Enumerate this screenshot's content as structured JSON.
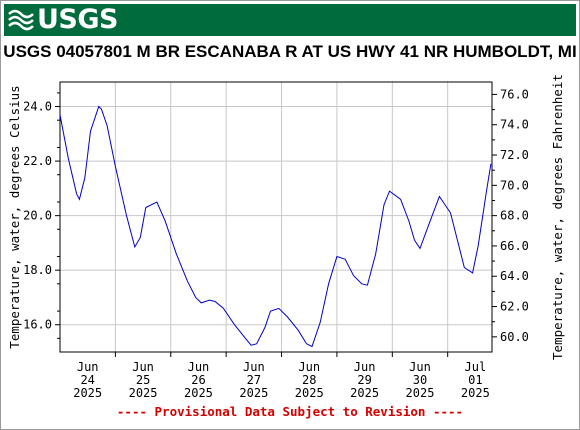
{
  "header": {
    "logo_text": "USGS"
  },
  "footer": {
    "note": "---- Provisional Data Subject to Revision ----"
  },
  "colors": {
    "banner": "#006b3c",
    "line": "#0000cc",
    "grid": "#c8c8c8",
    "footer": "#d40000"
  },
  "chart_data": {
    "type": "line",
    "title": "USGS 04057801 M BR ESCANABA R AT US HWY 41 NR HUMBOLDT, MI",
    "ylabel": "Temperature, water, degrees Celsius",
    "y2label": "Temperature, water, degrees Fahrenheit",
    "ylim": [
      15.0,
      24.9
    ],
    "y2lim": [
      59.0,
      76.82
    ],
    "xlim": [
      0,
      7.8
    ],
    "grid": true,
    "yticks": [
      "16.0",
      "18.0",
      "20.0",
      "22.0",
      "24.0"
    ],
    "ytick_values": [
      16,
      18,
      20,
      22,
      24
    ],
    "y2ticks": [
      "60.0",
      "62.0",
      "64.0",
      "66.0",
      "68.0",
      "70.0",
      "72.0",
      "74.0",
      "76.0"
    ],
    "y2tick_values": [
      60,
      62,
      64,
      66,
      68,
      70,
      72,
      74,
      76
    ],
    "xticks": [
      {
        "value": 0.5,
        "lines": [
          "Jun",
          "24",
          "2025"
        ]
      },
      {
        "value": 1.5,
        "lines": [
          "Jun",
          "25",
          "2025"
        ]
      },
      {
        "value": 2.5,
        "lines": [
          "Jun",
          "26",
          "2025"
        ]
      },
      {
        "value": 3.5,
        "lines": [
          "Jun",
          "27",
          "2025"
        ]
      },
      {
        "value": 4.5,
        "lines": [
          "Jun",
          "28",
          "2025"
        ]
      },
      {
        "value": 5.5,
        "lines": [
          "Jun",
          "29",
          "2025"
        ]
      },
      {
        "value": 6.5,
        "lines": [
          "Jun",
          "30",
          "2025"
        ]
      },
      {
        "value": 7.5,
        "lines": [
          "Jul",
          "01",
          "2025"
        ]
      }
    ],
    "series": [
      {
        "x": [
          0.0,
          0.15,
          0.3,
          0.35,
          0.45,
          0.55,
          0.7,
          0.75,
          0.85,
          1.0,
          1.2,
          1.35,
          1.45,
          1.55,
          1.75,
          1.9,
          2.1,
          2.3,
          2.45,
          2.55,
          2.7,
          2.8,
          2.95,
          3.15,
          3.35,
          3.45,
          3.55,
          3.7,
          3.8,
          3.95,
          4.1,
          4.3,
          4.45,
          4.55,
          4.7,
          4.85,
          5.0,
          5.15,
          5.25,
          5.3,
          5.45,
          5.55,
          5.7,
          5.85,
          5.95,
          6.15,
          6.3,
          6.4,
          6.5,
          6.7,
          6.85,
          7.05,
          7.2,
          7.3,
          7.45,
          7.55,
          7.7,
          7.78
        ],
        "y": [
          23.7,
          22.1,
          20.8,
          20.6,
          21.4,
          23.1,
          24.0,
          23.9,
          23.3,
          21.8,
          20.0,
          18.85,
          19.2,
          20.3,
          20.5,
          19.8,
          18.6,
          17.6,
          17.0,
          16.8,
          16.9,
          16.85,
          16.6,
          16.0,
          15.5,
          15.25,
          15.3,
          15.9,
          16.5,
          16.6,
          16.3,
          15.8,
          15.3,
          15.2,
          16.1,
          17.5,
          18.5,
          18.4,
          18.0,
          17.8,
          17.5,
          17.45,
          18.6,
          20.4,
          20.9,
          20.6,
          19.8,
          19.1,
          18.8,
          19.9,
          20.7,
          20.1,
          18.9,
          18.1,
          17.9,
          18.9,
          20.9,
          21.9
        ]
      }
    ]
  }
}
